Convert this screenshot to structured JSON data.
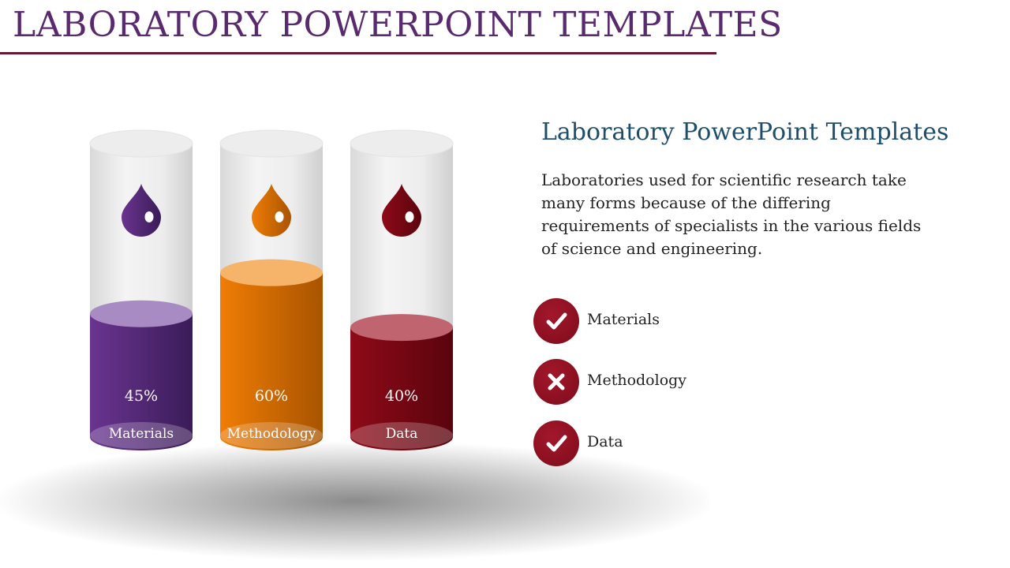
{
  "title": "LABORATORY POWERPOINT TEMPLATES",
  "colors": {
    "title": "#5a2a6e",
    "rule": "#6b1430",
    "heading": "#1f4e6b",
    "badge": "#8b0f22"
  },
  "cylinders": [
    {
      "label": "Materials",
      "percent": "45%",
      "fill_fraction": 0.45,
      "color": "#6a3490",
      "dark": "#3a1c58",
      "light": "#a98bc4",
      "drop_icon": "drop-icon"
    },
    {
      "label": "Methodology",
      "percent": "60%",
      "fill_fraction": 0.6,
      "color": "#f07d05",
      "dark": "#a85400",
      "light": "#f6b46a",
      "drop_icon": "drop-icon"
    },
    {
      "label": "Data",
      "percent": "40%",
      "fill_fraction": 0.4,
      "color": "#8e0a18",
      "dark": "#5a040d",
      "light": "#c06470",
      "drop_icon": "drop-icon"
    }
  ],
  "info": {
    "heading": "Laboratory PowerPoint Templates",
    "body": "Laboratories used for scientific research take many forms because of the differing requirements of specialists in the various fields of science and engineering."
  },
  "checklist": [
    {
      "label": "Materials",
      "icon": "check-icon"
    },
    {
      "label": "Methodology",
      "icon": "cross-icon"
    },
    {
      "label": "Data",
      "icon": "check-icon"
    }
  ]
}
